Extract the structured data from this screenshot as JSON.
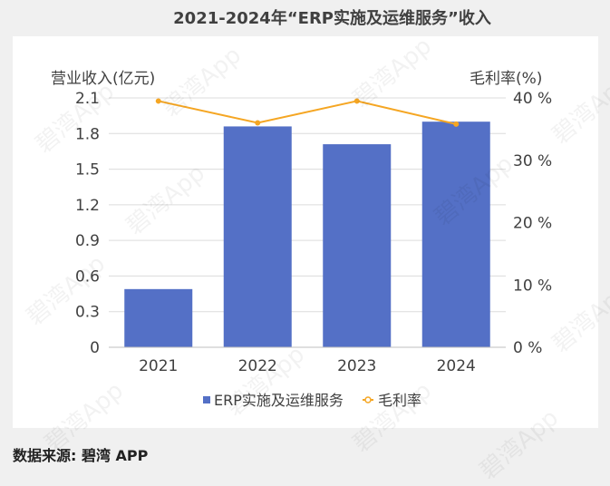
{
  "title": "2021-2024年“ERP实施及运维服务”收入",
  "source": "数据来源: 碧湾 APP",
  "watermark": "碧湾App",
  "colors": {
    "bar": "#5470c6",
    "line": "#f5a623",
    "grid": "#dcdcdc",
    "text": "#404040"
  },
  "chart_data": {
    "type": "bar",
    "categories": [
      "2021",
      "2022",
      "2023",
      "2024"
    ],
    "series": [
      {
        "name": "ERP实施及运维服务",
        "type": "bar",
        "axis": "left",
        "values": [
          0.49,
          1.86,
          1.71,
          1.9
        ]
      },
      {
        "name": "毛利率",
        "type": "line",
        "axis": "right",
        "values": [
          39.5,
          36.0,
          39.5,
          35.8
        ]
      }
    ],
    "ylabel_left": "营业收入(亿元)",
    "ylabel_right": "毛利率(%)",
    "ylim_left": [
      0,
      2.1
    ],
    "ylim_right": [
      0,
      40
    ],
    "yticks_left": [
      "0",
      "0.3",
      "0.6",
      "0.9",
      "1.2",
      "1.5",
      "1.8",
      "2.1"
    ],
    "yticks_right": [
      "0 %",
      "10 %",
      "20 %",
      "30 %",
      "40 %"
    ],
    "grid": true,
    "legend": "bottom"
  }
}
